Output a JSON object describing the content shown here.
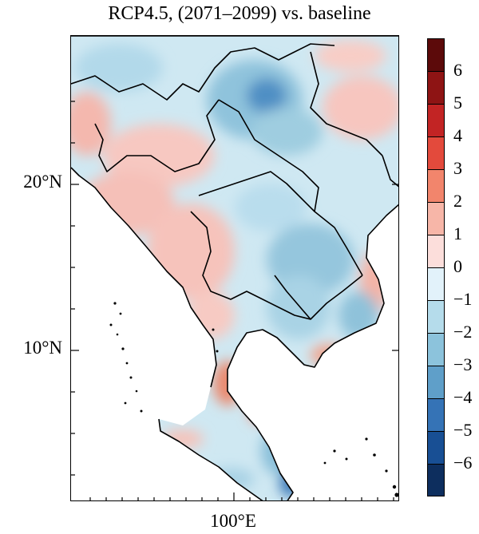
{
  "title": "RCP4.5, (2071–2099) vs. baseline",
  "axes": {
    "lat_labels": [
      "20°N",
      "10°N"
    ],
    "lon_labels": [
      "100°E"
    ]
  },
  "colorbar": {
    "labels": [
      "6",
      "5",
      "4",
      "3",
      "2",
      "1",
      "0",
      "−1",
      "−2",
      "−3",
      "−4",
      "−5",
      "−6"
    ],
    "colors": [
      "#5c0a0a",
      "#8e1414",
      "#c22424",
      "#e34a3c",
      "#f2856c",
      "#f7b6a8",
      "#fcdedb",
      "#e2f2fa",
      "#b5dceb",
      "#8cc3dc",
      "#5f9fc9",
      "#3573b6",
      "#184f94",
      "#0d2e5e"
    ]
  },
  "legend_colors": {
    "warm": "#f7c6c0",
    "neutral": "#dff0f7",
    "cool": "#a6d0e3",
    "coolest": "#5f9fc9"
  }
}
